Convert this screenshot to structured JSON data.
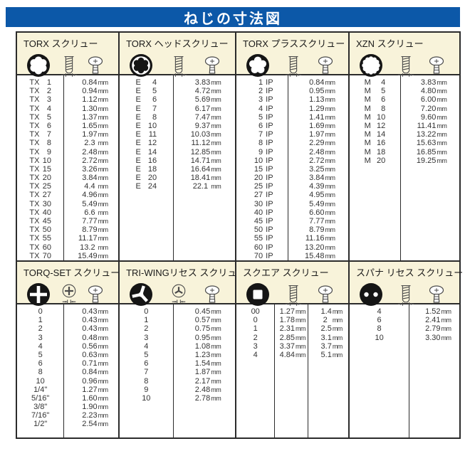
{
  "page": {
    "title": "ねじの寸法図",
    "colors": {
      "title_bg": "#0c58a8",
      "title_fg": "#ffffff",
      "header_bg": "#f8f3da",
      "border": "#2b2b2b",
      "text": "#333333"
    }
  },
  "panels": [
    {
      "title": "TORX スクリュー",
      "unit": "mm",
      "icons": [
        "torx-recess-icon",
        "screw-side-view-icon",
        "screw-head-view-icon"
      ],
      "rows": [
        [
          "TX 1",
          "0.84"
        ],
        [
          "TX 2",
          "0.94"
        ],
        [
          "TX 3",
          "1.12"
        ],
        [
          "TX 4",
          "1.30"
        ],
        [
          "TX 5",
          "1.37"
        ],
        [
          "TX 6",
          "1.65"
        ],
        [
          "TX 7",
          "1.97"
        ],
        [
          "TX 8",
          "2.3 "
        ],
        [
          "TX 9",
          "2.48"
        ],
        [
          "TX 10",
          "2.72"
        ],
        [
          "TX 15",
          "3.26"
        ],
        [
          "TX 20",
          "3.84"
        ],
        [
          "TX 25",
          "4.4 "
        ],
        [
          "TX 27",
          "4.96"
        ],
        [
          "TX 30",
          "5.49"
        ],
        [
          "TX 40",
          "6.6 "
        ],
        [
          "TX 45",
          "7.77"
        ],
        [
          "TX 50",
          "8.79"
        ],
        [
          "TX 55",
          "11.17"
        ],
        [
          "TX 60",
          "13.2 "
        ],
        [
          "TX 70",
          "15.49"
        ]
      ]
    },
    {
      "title": "TORX ヘッドスクリュー",
      "unit": "mm",
      "icons": [
        "external-torx-head-icon",
        "bolt-side-view-icon",
        "bolt-head-view-icon"
      ],
      "rows": [
        [
          "E 4",
          "3.83"
        ],
        [
          "E 5",
          "4.72"
        ],
        [
          "E 6",
          "5.69"
        ],
        [
          "E 7",
          "6.17"
        ],
        [
          "E 8",
          "7.47"
        ],
        [
          "E 10",
          "9.37"
        ],
        [
          "E 11",
          "10.03"
        ],
        [
          "E 12",
          "11.12"
        ],
        [
          "E 14",
          "12.85"
        ],
        [
          "E 16",
          "14.71"
        ],
        [
          "E 18",
          "16.64"
        ],
        [
          "E 20",
          "18.41"
        ],
        [
          "E 24",
          "22.1 "
        ]
      ]
    },
    {
      "title": "TORX プラススクリュー",
      "unit": "mm",
      "icons": [
        "torx-plus-recess-icon",
        "screw-side-view-icon",
        "screw-head-view-icon"
      ],
      "rows": [
        [
          "1 IP",
          "0.84"
        ],
        [
          "2 IP",
          "0.95"
        ],
        [
          "3 IP",
          "1.13"
        ],
        [
          "4 IP",
          "1.29"
        ],
        [
          "5 IP",
          "1.41"
        ],
        [
          "6 IP",
          "1.69"
        ],
        [
          "7 IP",
          "1.97"
        ],
        [
          "8 IP",
          "2.29"
        ],
        [
          "9 IP",
          "2.48"
        ],
        [
          "10 IP",
          "2.72"
        ],
        [
          "15 IP",
          "3.25"
        ],
        [
          "20 IP",
          "3.84"
        ],
        [
          "25 IP",
          "4.39"
        ],
        [
          "27 IP",
          "4.95"
        ],
        [
          "30 IP",
          "5.49"
        ],
        [
          "40 IP",
          "6.60"
        ],
        [
          "45 IP",
          "7.77"
        ],
        [
          "50 IP",
          "8.79"
        ],
        [
          "55 IP",
          "11.16"
        ],
        [
          "60 IP",
          "13.20"
        ],
        [
          "70 IP",
          "15.48"
        ]
      ]
    },
    {
      "title": "XZN スクリュー",
      "unit": "mm",
      "icons": [
        "xzn-spline-recess-icon",
        "screw-side-view-icon",
        "screw-head-view-icon"
      ],
      "rows": [
        [
          "M 4",
          "3.83"
        ],
        [
          "M 5",
          "4.80"
        ],
        [
          "M 6",
          "6.00"
        ],
        [
          "M 8",
          "7.20"
        ],
        [
          "M 10",
          "9.60"
        ],
        [
          "M 12",
          "11.41"
        ],
        [
          "M 14",
          "13.22"
        ],
        [
          "M 16",
          "15.63"
        ],
        [
          "M 18",
          "16.85"
        ],
        [
          "M 20",
          "19.25"
        ]
      ]
    },
    {
      "title": "TORQ-SET スクリュー",
      "unit": "mm",
      "icons": [
        "torq-set-recess-icon",
        "recess-top-view-icon",
        "screw-head-view-icon"
      ],
      "rows": [
        [
          "0",
          "0.43"
        ],
        [
          "1",
          "0.43"
        ],
        [
          "2",
          "0.43"
        ],
        [
          "3",
          "0.48"
        ],
        [
          "4",
          "0.56"
        ],
        [
          "5",
          "0.63"
        ],
        [
          "6",
          "0.71"
        ],
        [
          "8",
          "0.84"
        ],
        [
          "10",
          "0.96"
        ],
        [
          "1/4\"",
          "1.27"
        ],
        [
          "5/16\"",
          "1.60"
        ],
        [
          "3/8\"",
          "1.90"
        ],
        [
          "7/16\"",
          "2.23"
        ],
        [
          "1/2\"",
          "2.54"
        ]
      ]
    },
    {
      "title": "TRI-WINGリセス スクリュー",
      "unit": "mm",
      "icons": [
        "tri-wing-recess-icon",
        "recess-top-view-icon",
        "screw-head-view-icon"
      ],
      "rows": [
        [
          "0",
          "0.45"
        ],
        [
          "1",
          "0.57"
        ],
        [
          "2",
          "0.75"
        ],
        [
          "3",
          "0.95"
        ],
        [
          "4",
          "1.08"
        ],
        [
          "5",
          "1.23"
        ],
        [
          "6",
          "1.54"
        ],
        [
          "7",
          "1.87"
        ],
        [
          "8",
          "2.17"
        ],
        [
          "9",
          "2.48"
        ],
        [
          "10",
          "2.78"
        ]
      ]
    },
    {
      "title": "スクエア スクリュー",
      "unit": "mm",
      "icons": [
        "square-recess-icon",
        "screw-side-view-icon",
        "screw-head-view-icon"
      ],
      "rows": [
        [
          "00",
          "1.27",
          "1.4"
        ],
        [
          "0",
          "1.78",
          "2  "
        ],
        [
          "1",
          "2.31",
          "2.5"
        ],
        [
          "2",
          "2.85",
          "3.1"
        ],
        [
          "3",
          "3.37",
          "3.7"
        ],
        [
          "4",
          "4.84",
          "5.1"
        ]
      ]
    },
    {
      "title": "スパナ リセス スクリュー",
      "unit": "mm",
      "icons": [
        "spanner-recess-icon",
        "screw-side-view-icon",
        "screw-head-view-icon"
      ],
      "rows": [
        [
          "4",
          "1.52"
        ],
        [
          "6",
          "2.41"
        ],
        [
          "8",
          "2.79"
        ],
        [
          "10",
          "3.30"
        ]
      ]
    }
  ]
}
